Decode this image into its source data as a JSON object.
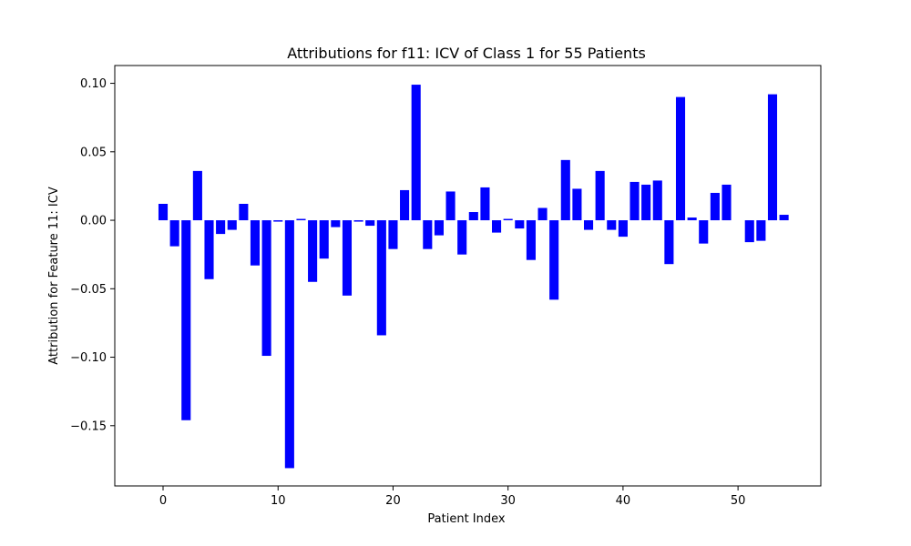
{
  "chart_data": {
    "type": "bar",
    "title": "Attributions for f11: ICV of Class 1 for 55 Patients",
    "xlabel": "Patient Index",
    "ylabel": "Attribution for Feature 11: ICV",
    "x": [
      0,
      1,
      2,
      3,
      4,
      5,
      6,
      7,
      8,
      9,
      10,
      11,
      12,
      13,
      14,
      15,
      16,
      17,
      18,
      19,
      20,
      21,
      22,
      23,
      24,
      25,
      26,
      27,
      28,
      29,
      30,
      31,
      32,
      33,
      34,
      35,
      36,
      37,
      38,
      39,
      40,
      41,
      42,
      43,
      44,
      45,
      46,
      47,
      48,
      49,
      50,
      51,
      52,
      53,
      54
    ],
    "values": [
      0.012,
      -0.019,
      -0.146,
      0.036,
      -0.043,
      -0.01,
      -0.007,
      0.012,
      -0.033,
      -0.099,
      -0.001,
      -0.181,
      0.001,
      -0.045,
      -0.028,
      -0.005,
      -0.055,
      -0.001,
      -0.004,
      -0.084,
      -0.021,
      0.022,
      0.099,
      -0.021,
      -0.011,
      0.021,
      -0.025,
      0.006,
      0.024,
      -0.009,
      0.001,
      -0.006,
      -0.029,
      0.009,
      -0.058,
      0.044,
      0.023,
      -0.007,
      0.036,
      -0.007,
      -0.012,
      0.028,
      0.026,
      0.029,
      -0.032,
      0.09,
      0.002,
      -0.017,
      0.02,
      0.026,
      0.0,
      -0.016,
      -0.015,
      0.092,
      0.004
    ],
    "xlim": [
      -4.2,
      57.2
    ],
    "ylim": [
      -0.194,
      0.113
    ],
    "xticks": [
      0,
      10,
      20,
      30,
      40,
      50
    ],
    "yticks": [
      -0.15,
      -0.1,
      -0.05,
      0.0,
      0.05,
      0.1
    ],
    "ytick_labels": [
      "−0.15",
      "−0.10",
      "−0.05",
      "0.00",
      "0.05",
      "0.10"
    ],
    "bar_color": "#0000ff",
    "grid": false,
    "legend": "none"
  }
}
